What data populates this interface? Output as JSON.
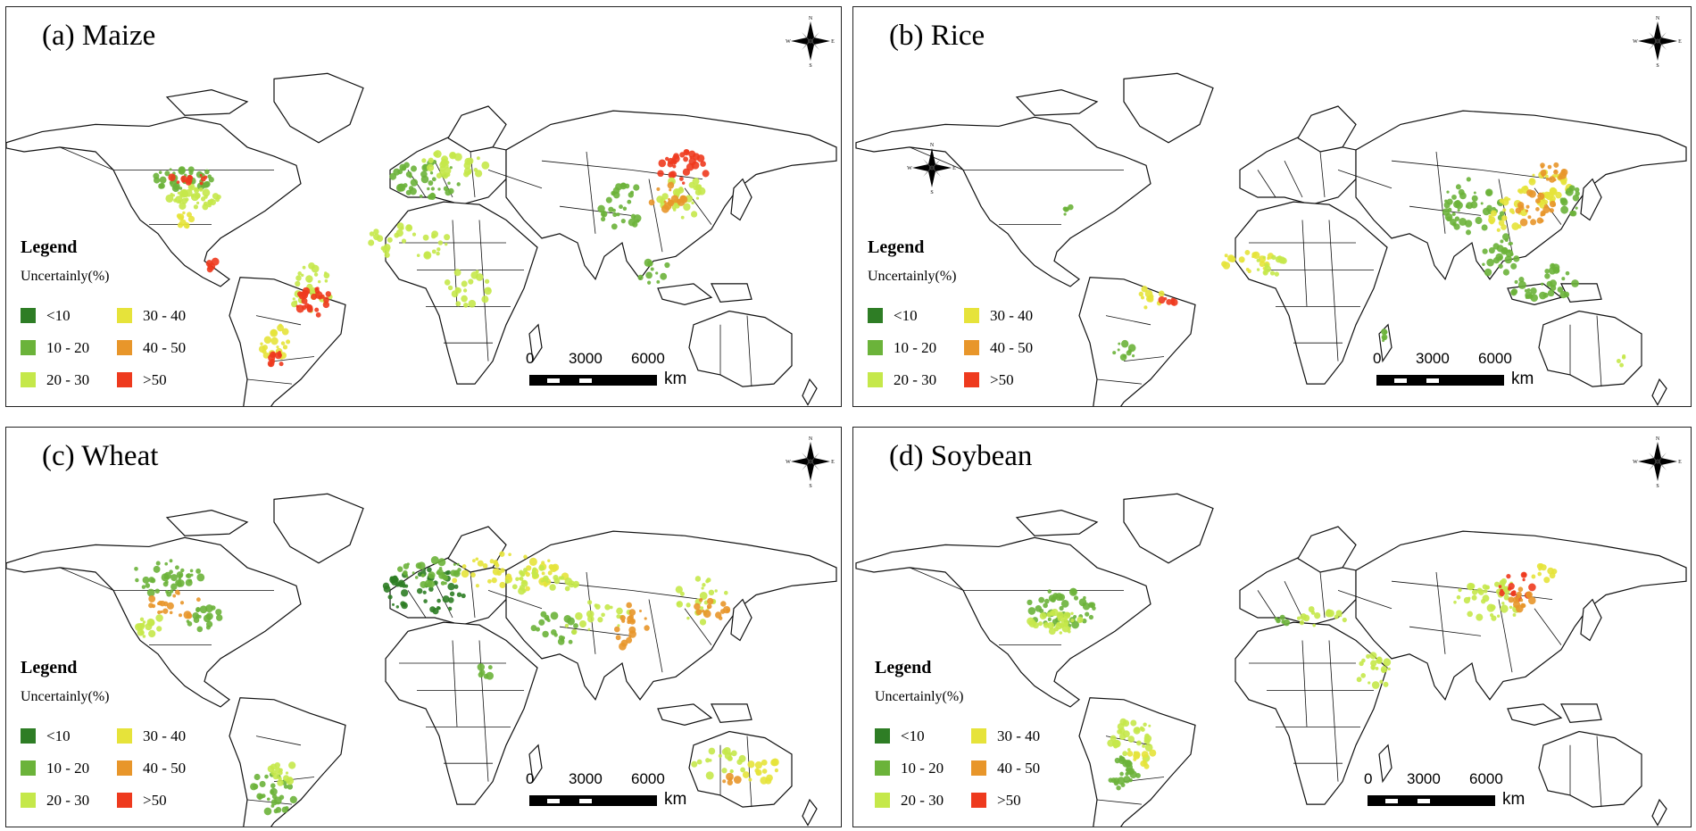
{
  "panels": [
    {
      "id": "a",
      "title": "(a)  Maize"
    },
    {
      "id": "b",
      "title": "(b) Rice"
    },
    {
      "id": "c",
      "title": "(c) Wheat"
    },
    {
      "id": "d",
      "title": "(d) Soybean"
    }
  ],
  "legend": {
    "title": "Legend",
    "subtitle": "Uncertainly(%)",
    "items": [
      {
        "label": "<10",
        "color": "#2e7d25"
      },
      {
        "label": "10 - 20",
        "color": "#6bb33a"
      },
      {
        "label": "20 - 30",
        "color": "#c5e84a"
      },
      {
        "label": "30 - 40",
        "color": "#e6e33a"
      },
      {
        "label": "40 - 50",
        "color": "#e8962a"
      },
      {
        "label": ">50",
        "color": "#ee3a1e"
      }
    ]
  },
  "scalebar": {
    "ticks": [
      "0",
      "3000",
      "6000"
    ],
    "unit": "km"
  },
  "compass": {
    "n": "N",
    "s": "S",
    "e": "E",
    "w": "W"
  }
}
